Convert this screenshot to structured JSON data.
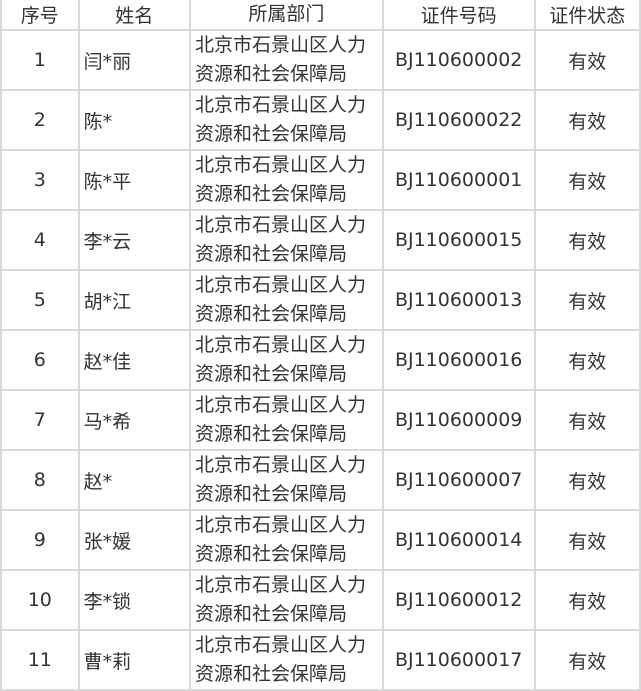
{
  "table": {
    "headers": [
      "序号",
      "姓名",
      "所属部门",
      "证件号码",
      "证件状态"
    ],
    "rows": [
      {
        "no": "1",
        "name": "闫*丽",
        "dept_line1": "北京市石景山区人力",
        "dept_line2": "资源和社会保障局",
        "id": "BJ110600002",
        "status": "有效"
      },
      {
        "no": "2",
        "name": "陈*",
        "dept_line1": "北京市石景山区人力",
        "dept_line2": "资源和社会保障局",
        "id": "BJ110600022",
        "status": "有效"
      },
      {
        "no": "3",
        "name": "陈*平",
        "dept_line1": "北京市石景山区人力",
        "dept_line2": "资源和社会保障局",
        "id": "BJ110600001",
        "status": "有效"
      },
      {
        "no": "4",
        "name": "李*云",
        "dept_line1": "北京市石景山区人力",
        "dept_line2": "资源和社会保障局",
        "id": "BJ110600015",
        "status": "有效"
      },
      {
        "no": "5",
        "name": "胡*江",
        "dept_line1": "北京市石景山区人力",
        "dept_line2": "资源和社会保障局",
        "id": "BJ110600013",
        "status": "有效"
      },
      {
        "no": "6",
        "name": "赵*佳",
        "dept_line1": "北京市石景山区人力",
        "dept_line2": "资源和社会保障局",
        "id": "BJ110600016",
        "status": "有效"
      },
      {
        "no": "7",
        "name": "马*希",
        "dept_line1": "北京市石景山区人力",
        "dept_line2": "资源和社会保障局",
        "id": "BJ110600009",
        "status": "有效"
      },
      {
        "no": "8",
        "name": "赵*",
        "dept_line1": "北京市石景山区人力",
        "dept_line2": "资源和社会保障局",
        "id": "BJ110600007",
        "status": "有效"
      },
      {
        "no": "9",
        "name": "张*媛",
        "dept_line1": "北京市石景山区人力",
        "dept_line2": "资源和社会保障局",
        "id": "BJ110600014",
        "status": "有效"
      },
      {
        "no": "10",
        "name": "李*锁",
        "dept_line1": "北京市石景山区人力",
        "dept_line2": "资源和社会保障局",
        "id": "BJ110600012",
        "status": "有效"
      },
      {
        "no": "11",
        "name": "曹*莉",
        "dept_line1": "北京市石景山区人力",
        "dept_line2": "资源和社会保障局",
        "id": "BJ110600017",
        "status": "有效"
      }
    ]
  }
}
